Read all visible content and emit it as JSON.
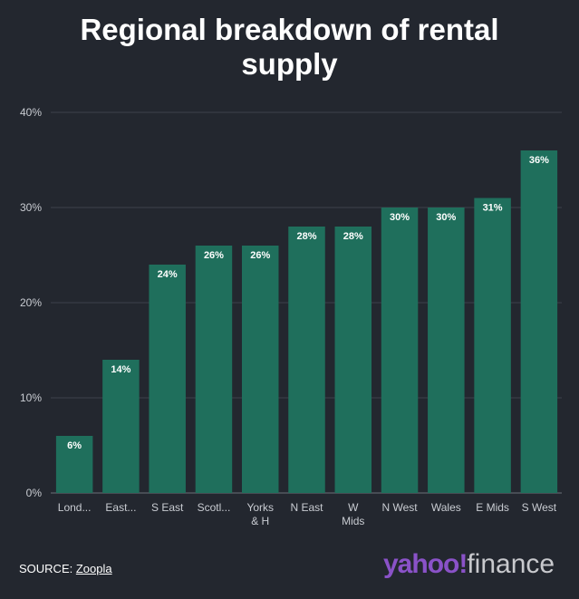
{
  "chart_data": {
    "type": "bar",
    "title": "Regional breakdown of rental supply",
    "categories": [
      "Lond...",
      "East...",
      "S East",
      "Scotl...",
      "Yorks & H",
      "N East",
      "W Mids",
      "N West",
      "Wales",
      "E Mids",
      "S West"
    ],
    "values": [
      6,
      14,
      24,
      26,
      26,
      28,
      28,
      30,
      30,
      31,
      36
    ],
    "data_labels": [
      "6%",
      "14%",
      "24%",
      "26%",
      "26%",
      "28%",
      "28%",
      "30%",
      "30%",
      "31%",
      "36%"
    ],
    "y_ticks": [
      0,
      10,
      20,
      30,
      40
    ],
    "y_tick_labels": [
      "0%",
      "10%",
      "20%",
      "30%",
      "40%"
    ],
    "ylim": [
      0,
      40
    ],
    "xlabel": "",
    "ylabel": "",
    "grid": true,
    "legend": "none",
    "colors": {
      "bar": "#1f6f5c",
      "background": "#23272f",
      "grid": "#3d424b"
    }
  },
  "footer": {
    "source_prefix": "SOURCE: ",
    "source_link": "Zoopla",
    "logo_yahoo": "yahoo!",
    "logo_finance": "finance"
  }
}
